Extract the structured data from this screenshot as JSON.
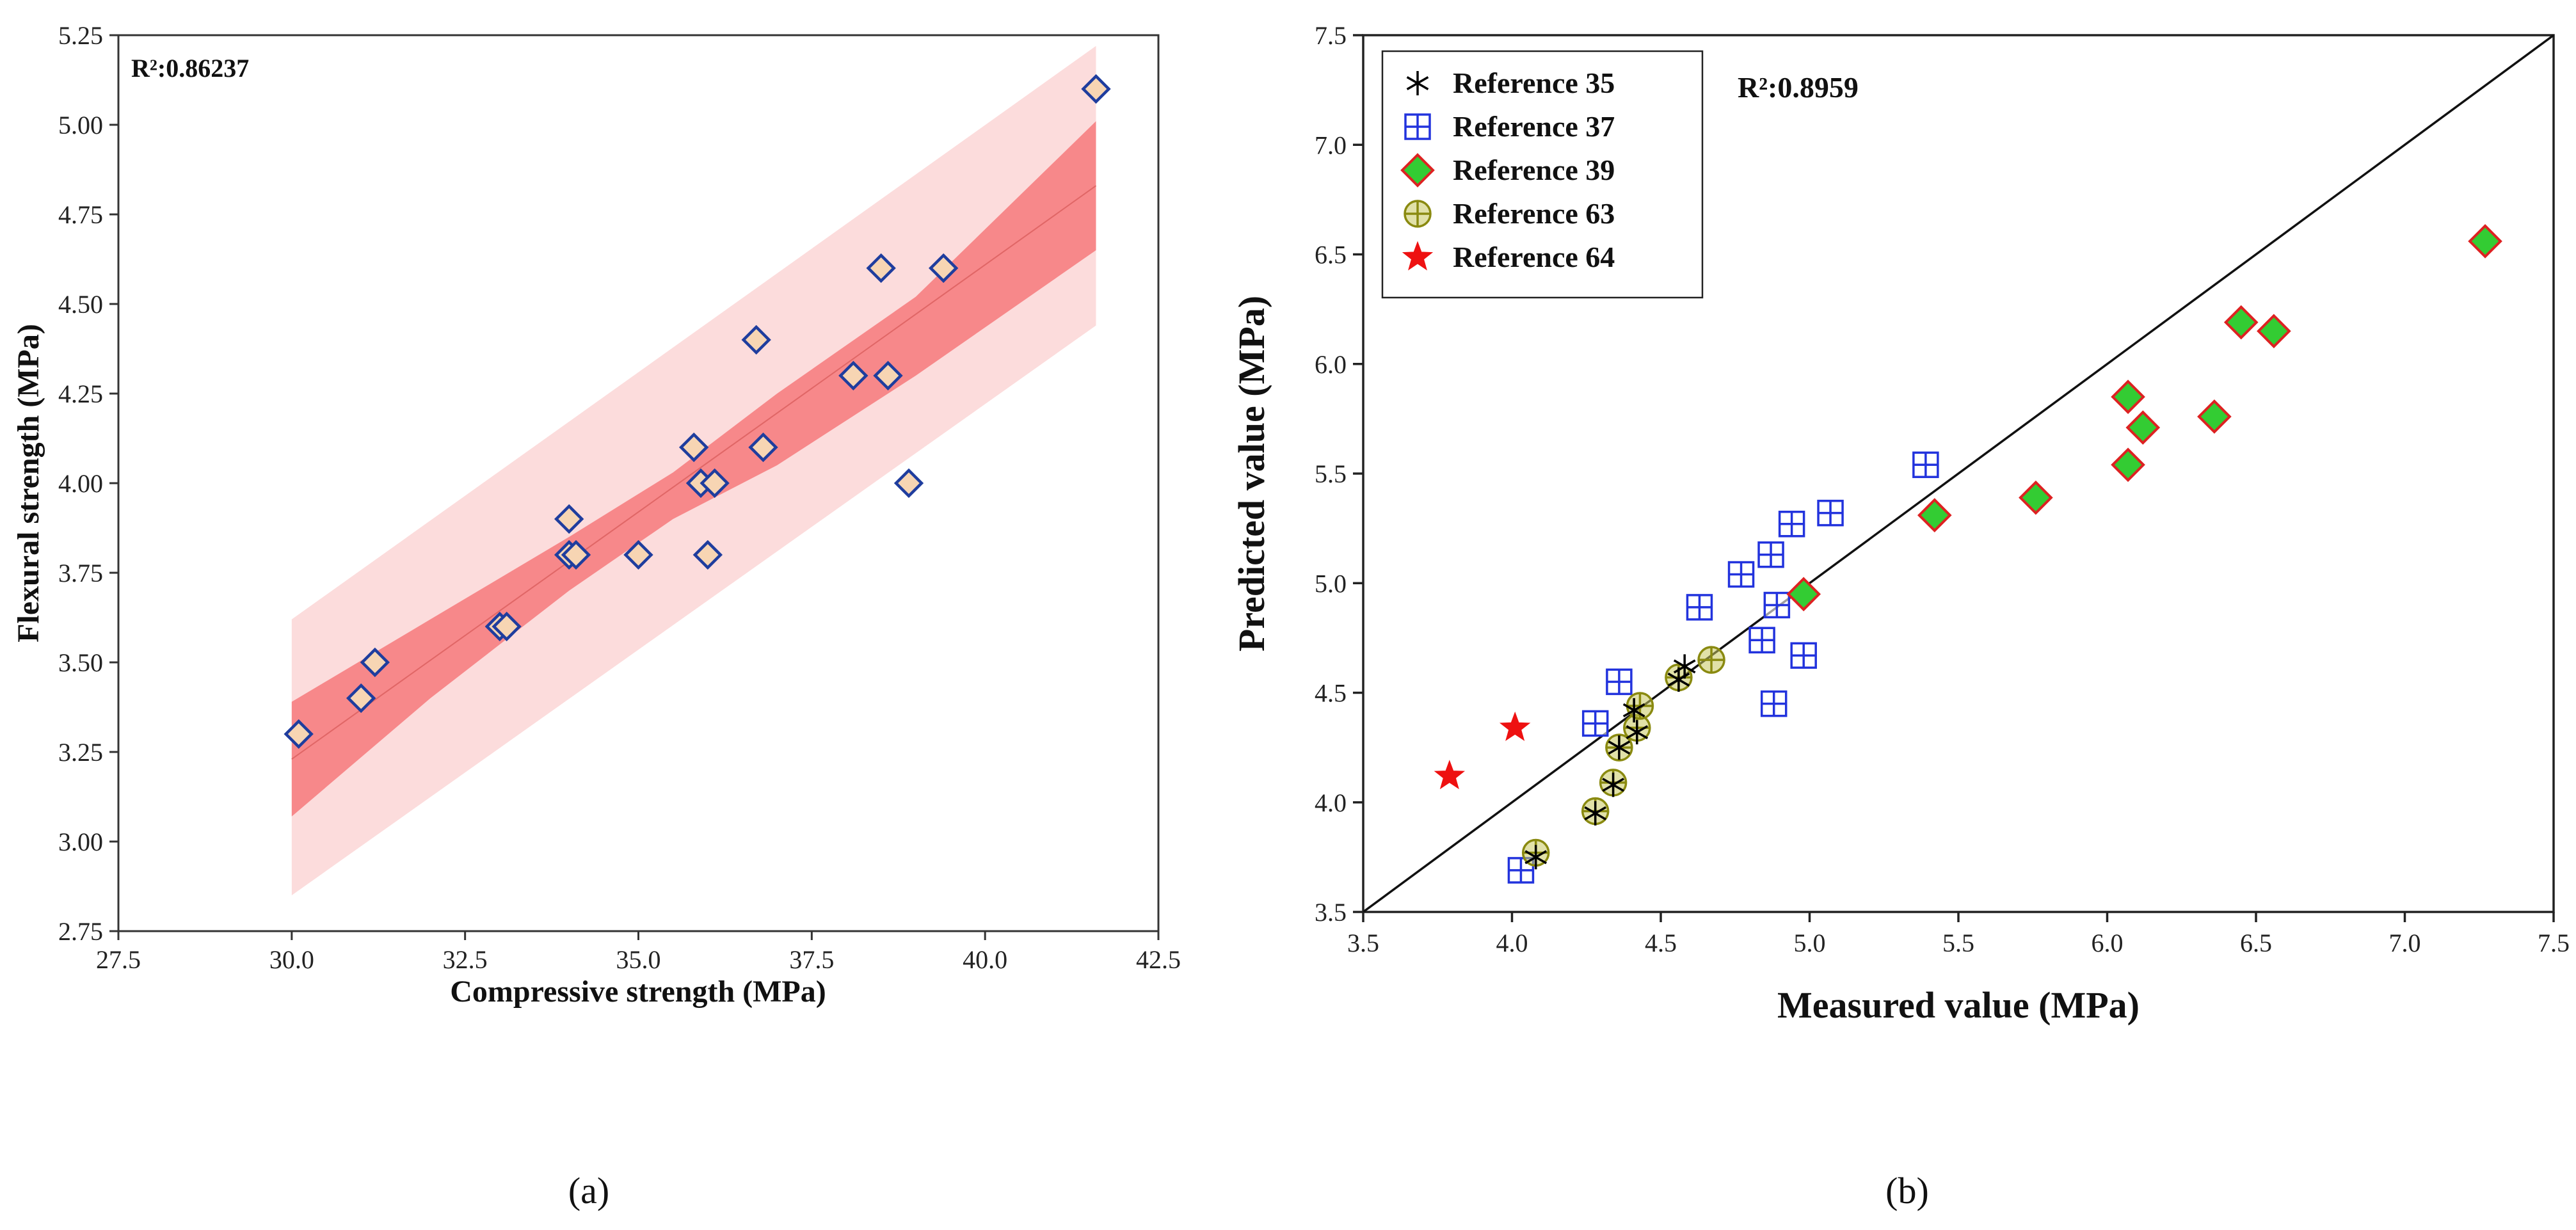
{
  "chart_data": [
    {
      "type": "scatter",
      "panel_label": "(a)",
      "title": "",
      "xlabel": "Compressive strength (MPa)",
      "ylabel": "Flexural strength (MPa)",
      "xlim": [
        27.5,
        42.5
      ],
      "ylim": [
        2.75,
        5.25
      ],
      "xticks": [
        "27.5",
        "30.0",
        "32.5",
        "35.0",
        "37.5",
        "40.0",
        "42.5"
      ],
      "yticks": [
        "2.75",
        "3.00",
        "3.25",
        "3.50",
        "3.75",
        "4.00",
        "4.25",
        "4.50",
        "4.75",
        "5.00",
        "5.25"
      ],
      "annotation": "R²:0.86237",
      "grid": false,
      "fit_line": {
        "x": [
          30.0,
          41.6
        ],
        "y": [
          3.23,
          4.83
        ]
      },
      "confidence_band": {
        "x": [
          30.0,
          32.0,
          34.0,
          35.5,
          37.0,
          39.0,
          41.6
        ],
        "lower": [
          3.07,
          3.4,
          3.7,
          3.9,
          4.05,
          4.3,
          4.65
        ],
        "upper": [
          3.39,
          3.62,
          3.85,
          4.03,
          4.25,
          4.52,
          5.01
        ]
      },
      "prediction_band": {
        "x": [
          30.0,
          41.6
        ],
        "lower": [
          2.85,
          4.44
        ],
        "upper": [
          3.62,
          5.22
        ]
      },
      "series": [
        {
          "name": "Data",
          "marker": "diamond",
          "x": [
            30.1,
            31.0,
            31.2,
            33.0,
            33.1,
            34.0,
            34.0,
            34.1,
            35.0,
            35.8,
            35.9,
            36.0,
            36.1,
            36.7,
            36.8,
            38.1,
            38.5,
            38.6,
            38.9,
            39.4,
            41.6
          ],
          "y": [
            3.3,
            3.4,
            3.5,
            3.6,
            3.6,
            3.8,
            3.9,
            3.8,
            3.8,
            4.1,
            4.0,
            3.8,
            4.0,
            4.4,
            4.1,
            4.3,
            4.6,
            4.3,
            4.0,
            4.6,
            5.1
          ]
        }
      ],
      "colors": {
        "fit_line": "#e06666",
        "confidence": "#f7888a",
        "prediction": "#fcdcdc",
        "marker_fill": "#f7d5b3",
        "marker_edge": "#1f3d9e"
      }
    },
    {
      "type": "scatter",
      "panel_label": "(b)",
      "title": "",
      "xlabel": "Measured value (MPa)",
      "ylabel": "Predicted value (MPa)",
      "xlim": [
        3.5,
        7.5
      ],
      "ylim": [
        3.5,
        7.5
      ],
      "xticks": [
        "3.5",
        "4.0",
        "4.5",
        "5.0",
        "5.5",
        "6.0",
        "6.5",
        "7.0",
        "7.5"
      ],
      "yticks": [
        "3.5",
        "4.0",
        "4.5",
        "5.0",
        "5.5",
        "6.0",
        "6.5",
        "7.0",
        "7.5"
      ],
      "annotation": "R²:0.8959",
      "grid": false,
      "reference_line": {
        "x": [
          3.5,
          7.5
        ],
        "y": [
          3.5,
          7.5
        ]
      },
      "legend_position": "top-left",
      "series": [
        {
          "name": "Reference 35",
          "marker": "asterisk",
          "color": "#000000",
          "x": [
            4.08,
            4.28,
            4.34,
            4.36,
            4.42,
            4.41,
            4.56,
            4.58
          ],
          "y": [
            3.75,
            3.95,
            4.08,
            4.25,
            4.32,
            4.42,
            4.56,
            4.62
          ]
        },
        {
          "name": "Reference 37",
          "marker": "square-plus",
          "color": "#2233dd",
          "x": [
            4.03,
            4.28,
            4.36,
            4.63,
            4.77,
            4.84,
            4.87,
            4.88,
            4.89,
            4.94,
            4.98,
            5.07,
            5.39
          ],
          "y": [
            3.69,
            4.36,
            4.55,
            4.89,
            5.04,
            4.74,
            5.13,
            4.45,
            4.9,
            5.27,
            4.67,
            5.32,
            5.54
          ]
        },
        {
          "name": "Reference 39",
          "marker": "diamond",
          "color": "#33cc33",
          "edge": "#dd2222",
          "x": [
            4.98,
            5.42,
            5.76,
            6.07,
            6.07,
            6.12,
            6.36,
            6.45,
            6.56,
            7.27
          ],
          "y": [
            4.95,
            5.31,
            5.39,
            5.85,
            5.54,
            5.71,
            5.76,
            6.19,
            6.15,
            6.56
          ]
        },
        {
          "name": "Reference 63",
          "marker": "circle-plus",
          "color": "#8a8a10",
          "fill": "#c8c860",
          "x": [
            4.08,
            4.28,
            4.34,
            4.36,
            4.42,
            4.43,
            4.56,
            4.67
          ],
          "y": [
            3.77,
            3.96,
            4.09,
            4.25,
            4.34,
            4.44,
            4.57,
            4.65
          ]
        },
        {
          "name": "Reference 64",
          "marker": "star",
          "color": "#ee1111",
          "x": [
            3.79,
            4.01
          ],
          "y": [
            4.12,
            4.34
          ]
        }
      ]
    }
  ]
}
